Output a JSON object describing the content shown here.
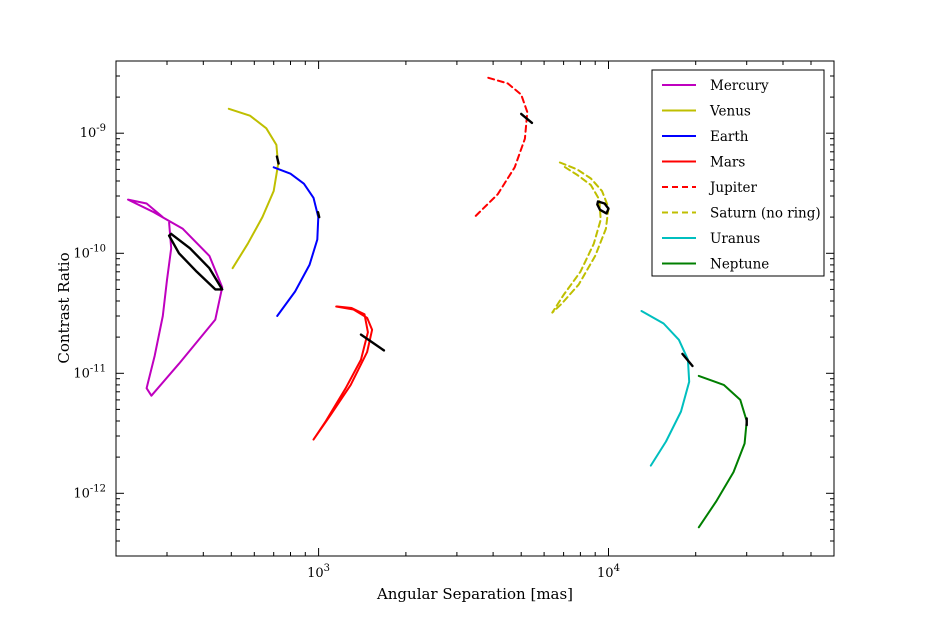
{
  "chart_data": {
    "type": "line",
    "title": "",
    "xlabel": "Angular Separation [mas]",
    "ylabel": "Contrast Ratio",
    "xscale": "log",
    "yscale": "log",
    "xlim": [
      200,
      60000
    ],
    "ylim": [
      3e-13,
      4e-09
    ],
    "x_ticks": [
      {
        "value": 1000,
        "base": "10",
        "exp": "3"
      },
      {
        "value": 10000,
        "base": "10",
        "exp": "4"
      }
    ],
    "y_ticks": [
      {
        "value": 1e-09,
        "base": "10",
        "exp": "-9"
      },
      {
        "value": 1e-10,
        "base": "10",
        "exp": "-10"
      },
      {
        "value": 1e-11,
        "base": "10",
        "exp": "-11"
      },
      {
        "value": 1e-12,
        "base": "10",
        "exp": "-12"
      }
    ],
    "legend_position": "top-right",
    "series": [
      {
        "name": "Mercury",
        "color": "#bf00bf",
        "dash": false,
        "points": [
          [
            290,
            2e-10
          ],
          [
            255,
            2.6e-10
          ],
          [
            220,
            2.8e-10
          ],
          [
            270,
            2.2e-10
          ],
          [
            340,
            1.6e-10
          ],
          [
            420,
            9.5e-11
          ],
          [
            465,
            5.2e-11
          ],
          [
            440,
            2.8e-11
          ],
          [
            330,
            1.2e-11
          ],
          [
            265,
            6.5e-12
          ],
          [
            255,
            7.5e-12
          ],
          [
            272,
            1.4e-11
          ],
          [
            290,
            3e-11
          ],
          [
            300,
            6e-11
          ],
          [
            310,
            1.1e-10
          ],
          [
            305,
            1.8e-10
          ]
        ]
      },
      {
        "name": "Venus",
        "color": "#bfbf00",
        "dash": false,
        "points": [
          [
            490,
            1.6e-09
          ],
          [
            580,
            1.4e-09
          ],
          [
            660,
            1.1e-09
          ],
          [
            715,
            8e-10
          ],
          [
            725,
            5.5e-10
          ],
          [
            700,
            3.3e-10
          ],
          [
            640,
            2e-10
          ],
          [
            570,
            1.2e-10
          ],
          [
            505,
            7.5e-11
          ]
        ]
      },
      {
        "name": "Earth",
        "color": "#0000ff",
        "dash": false,
        "points": [
          [
            700,
            5.2e-10
          ],
          [
            800,
            4.6e-10
          ],
          [
            890,
            3.8e-10
          ],
          [
            960,
            2.9e-10
          ],
          [
            998,
            2e-10
          ],
          [
            990,
            1.3e-10
          ],
          [
            930,
            8e-11
          ],
          [
            830,
            4.8e-11
          ],
          [
            720,
            3e-11
          ]
        ]
      },
      {
        "name": "Mars",
        "color": "#ff0000",
        "dash": false,
        "points": [
          [
            1150,
            3.6e-11
          ],
          [
            1320,
            3.4e-11
          ],
          [
            1470,
            2.9e-11
          ],
          [
            1530,
            2.3e-11
          ],
          [
            1470,
            1.5e-11
          ],
          [
            1290,
            8e-12
          ],
          [
            1100,
            4.5e-12
          ],
          [
            960,
            2.8e-12
          ],
          [
            1060,
            4e-12
          ],
          [
            1240,
            7.5e-12
          ],
          [
            1400,
            1.3e-11
          ],
          [
            1480,
            2.2e-11
          ],
          [
            1440,
            3.1e-11
          ],
          [
            1300,
            3.5e-11
          ],
          [
            1160,
            3.6e-11
          ]
        ]
      },
      {
        "name": "Jupiter",
        "color": "#ff0000",
        "dash": true,
        "points": [
          [
            3850,
            2.9e-09
          ],
          [
            4500,
            2.6e-09
          ],
          [
            5000,
            2.1e-09
          ],
          [
            5250,
            1.5e-09
          ],
          [
            5150,
            9e-10
          ],
          [
            4750,
            5.2e-10
          ],
          [
            4150,
            3.1e-10
          ],
          [
            3450,
            2e-10
          ]
        ]
      },
      {
        "name": "Saturn (no ring)",
        "color": "#bfbf00",
        "dash": true,
        "points": [
          [
            6800,
            5.7e-10
          ],
          [
            7800,
            5e-10
          ],
          [
            8700,
            4.2e-10
          ],
          [
            9500,
            3.3e-10
          ],
          [
            10000,
            2.4e-10
          ],
          [
            9800,
            1.6e-10
          ],
          [
            9000,
            9.5e-11
          ],
          [
            7900,
            5.5e-11
          ],
          [
            6900,
            3.8e-11
          ],
          [
            6400,
            3.2e-11
          ],
          [
            7000,
            4.5e-11
          ],
          [
            8000,
            7e-11
          ],
          [
            8900,
            1.2e-10
          ],
          [
            9400,
            1.9e-10
          ],
          [
            9300,
            2.8e-10
          ],
          [
            8700,
            3.7e-10
          ],
          [
            7800,
            4.5e-10
          ],
          [
            7000,
            5.3e-10
          ]
        ]
      },
      {
        "name": "Uranus",
        "color": "#00bfbf",
        "dash": false,
        "points": [
          [
            13000,
            3.3e-11
          ],
          [
            15500,
            2.6e-11
          ],
          [
            17500,
            1.9e-11
          ],
          [
            18800,
            1.3e-11
          ],
          [
            19000,
            8.5e-12
          ],
          [
            17800,
            4.8e-12
          ],
          [
            15800,
            2.7e-12
          ],
          [
            14000,
            1.7e-12
          ]
        ]
      },
      {
        "name": "Neptune",
        "color": "#007f00",
        "dash": false,
        "points": [
          [
            20500,
            9.5e-12
          ],
          [
            25000,
            8e-12
          ],
          [
            28500,
            6e-12
          ],
          [
            30000,
            4e-12
          ],
          [
            29500,
            2.6e-12
          ],
          [
            27000,
            1.5e-12
          ],
          [
            23500,
            8.5e-13
          ],
          [
            20500,
            5.2e-13
          ]
        ]
      }
    ],
    "black_markers": [
      {
        "type": "ellipse",
        "points": [
          [
            310,
            1.45e-10
          ],
          [
            360,
            1.1e-10
          ],
          [
            420,
            7.5e-11
          ],
          [
            465,
            5e-11
          ],
          [
            440,
            5e-11
          ],
          [
            380,
            7e-11
          ],
          [
            330,
            1e-10
          ],
          [
            305,
            1.4e-10
          ],
          [
            310,
            1.45e-10
          ]
        ]
      },
      {
        "type": "segment",
        "points": [
          [
            718,
            6.4e-10
          ],
          [
            728,
            5.6e-10
          ]
        ]
      },
      {
        "type": "segment",
        "points": [
          [
            995,
            2.2e-10
          ],
          [
            1005,
            2e-10
          ]
        ]
      },
      {
        "type": "segment",
        "points": [
          [
            1400,
            2.1e-11
          ],
          [
            1680,
            1.55e-11
          ]
        ]
      },
      {
        "type": "segment",
        "points": [
          [
            5000,
            1.45e-09
          ],
          [
            5450,
            1.22e-09
          ]
        ]
      },
      {
        "type": "ellipse",
        "points": [
          [
            9200,
            2.7e-10
          ],
          [
            9700,
            2.6e-10
          ],
          [
            10000,
            2.35e-10
          ],
          [
            9850,
            2.15e-10
          ],
          [
            9350,
            2.3e-10
          ],
          [
            9150,
            2.55e-10
          ],
          [
            9200,
            2.7e-10
          ]
        ]
      },
      {
        "type": "segment",
        "points": [
          [
            18000,
            1.45e-11
          ],
          [
            19500,
            1.15e-11
          ]
        ]
      },
      {
        "type": "segment",
        "points": [
          [
            30000,
            4.2e-12
          ],
          [
            30000,
            3.7e-12
          ]
        ]
      }
    ]
  }
}
